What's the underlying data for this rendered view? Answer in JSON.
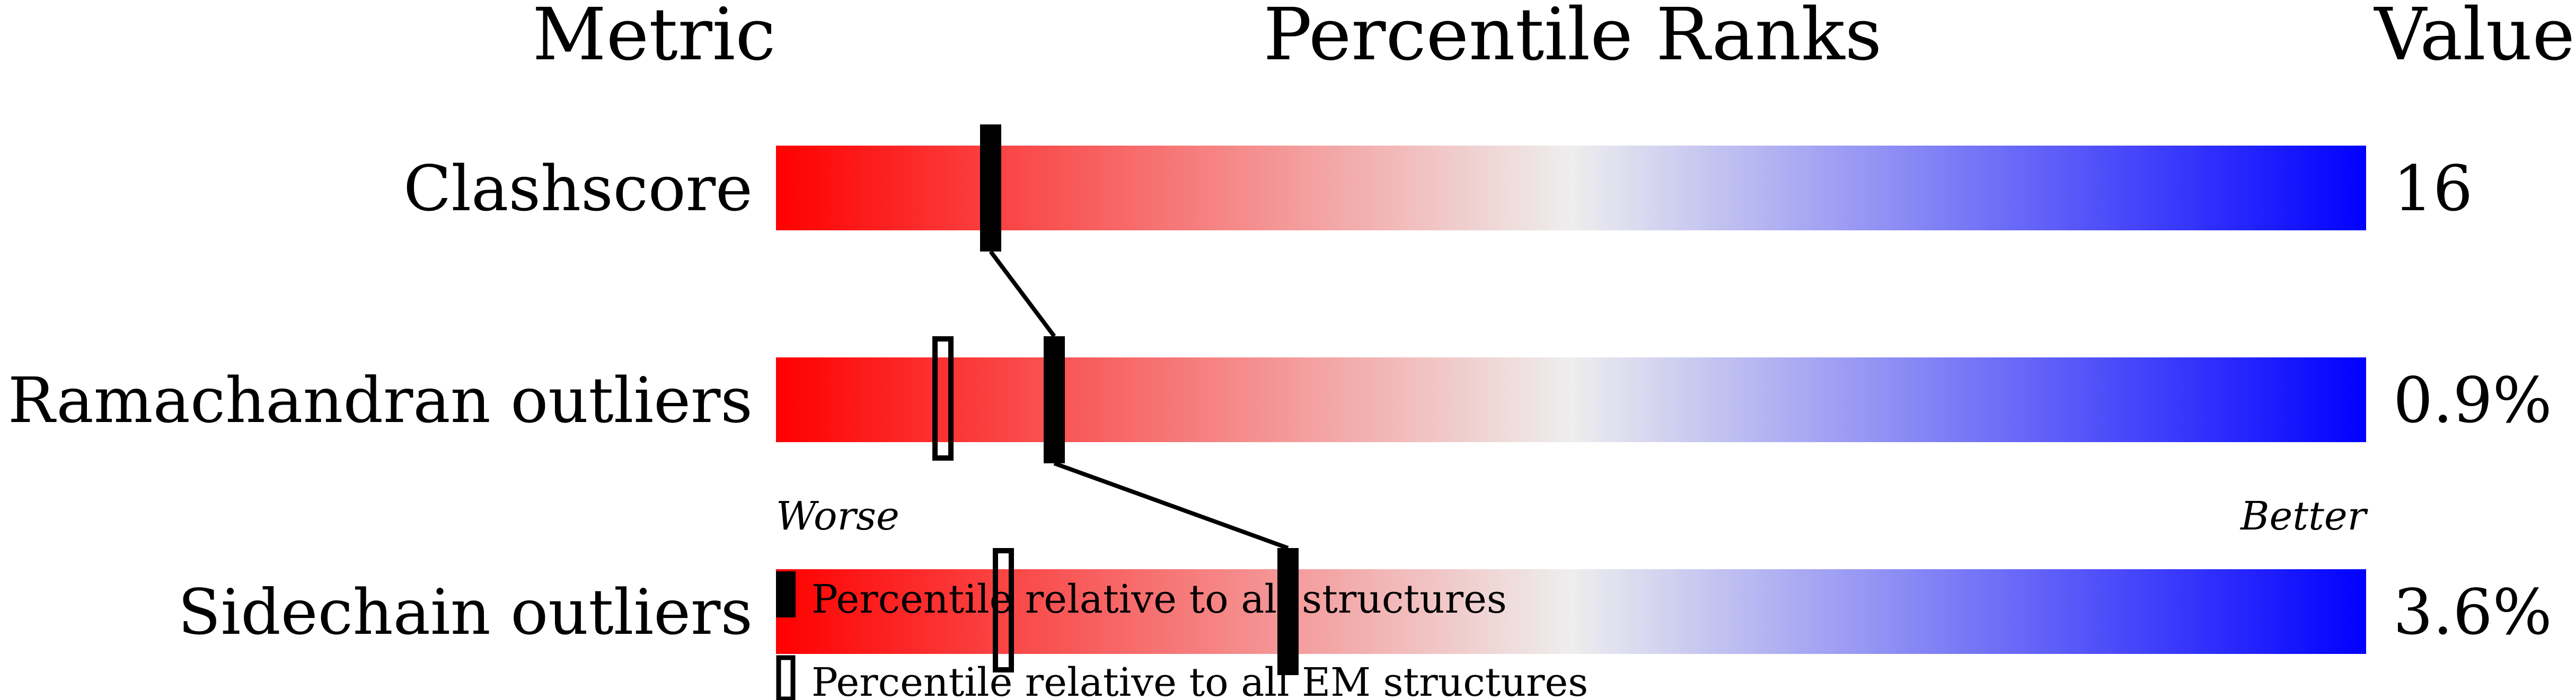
{
  "chart_data": {
    "type": "bar",
    "title": "",
    "headers": {
      "metric": "Metric",
      "ranks": "Percentile Ranks",
      "value": "Value"
    },
    "xlim": [
      0,
      100
    ],
    "axis_labels": {
      "left": "Worse",
      "right": "Better"
    },
    "colors": {
      "worse": "#ff0000",
      "middle": "#eeeeee",
      "better": "#0000ff",
      "marker": "#000000"
    },
    "rows": [
      {
        "metric": "Clashscore",
        "value": "16",
        "percentile_all": 13.5,
        "percentile_em": null
      },
      {
        "metric": "Ramachandran outliers",
        "value": "0.9%",
        "percentile_all": 17.5,
        "percentile_em": 10.5
      },
      {
        "metric": "Sidechain outliers",
        "value": "3.6%",
        "percentile_all": 32.2,
        "percentile_em": 14.3
      }
    ],
    "legend": [
      {
        "marker": "filled",
        "label": "Percentile relative to all structures"
      },
      {
        "marker": "open",
        "label": "Percentile relative to all EM structures"
      }
    ]
  }
}
